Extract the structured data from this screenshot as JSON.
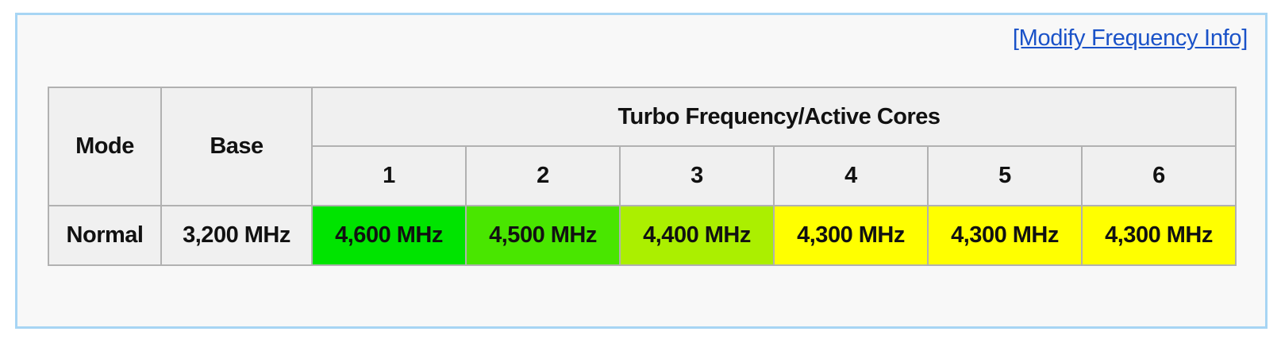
{
  "page": {
    "background_color": "#ffffff",
    "panel_border_color": "#a7d5f4",
    "panel_background_color": "#f8f8f8"
  },
  "link": {
    "label": "[Modify Frequency Info]",
    "color": "#1a52c8"
  },
  "table": {
    "border_color": "#b1b1b1",
    "header_background": "#f0f0f0",
    "headers": {
      "mode": "Mode",
      "base": "Base",
      "turbo_group": "Turbo Frequency/Active Cores"
    },
    "core_headers": [
      "1",
      "2",
      "3",
      "4",
      "5",
      "6"
    ],
    "row": {
      "mode": "Normal",
      "base": "3,200 MHz",
      "turbo": [
        {
          "cores": "1",
          "value": "4,600 MHz",
          "color": "#00e400"
        },
        {
          "cores": "2",
          "value": "4,500 MHz",
          "color": "#49e600"
        },
        {
          "cores": "3",
          "value": "4,400 MHz",
          "color": "#abef00"
        },
        {
          "cores": "4",
          "value": "4,300 MHz",
          "color": "#ffff00"
        },
        {
          "cores": "5",
          "value": "4,300 MHz",
          "color": "#ffff00"
        },
        {
          "cores": "6",
          "value": "4,300 MHz",
          "color": "#ffff00"
        }
      ]
    }
  }
}
